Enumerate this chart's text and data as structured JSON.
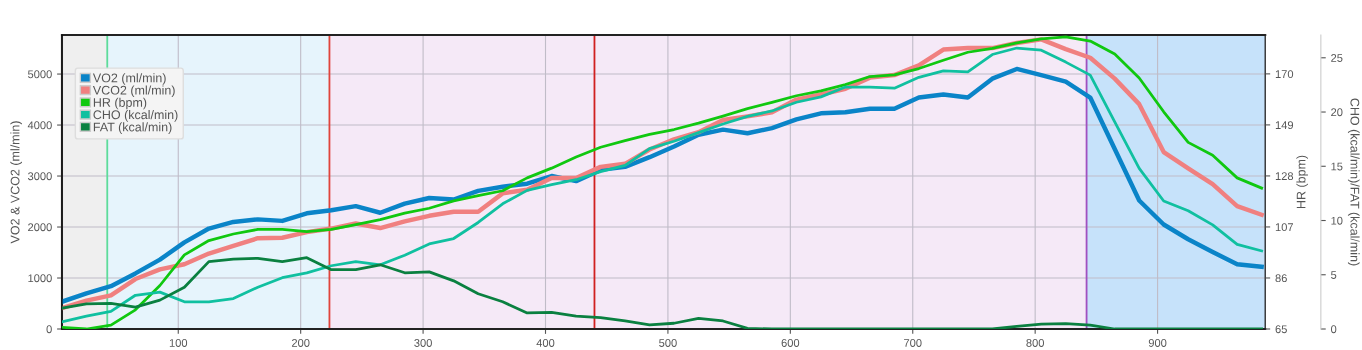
{
  "chart_data": {
    "type": "line",
    "ylabel": "VO2 & VCO2 (ml/min)",
    "y2label": "HR (bpm)",
    "y3label": "CHO (kcal/min)/FAT (kcal/min)",
    "x": [
      5,
      25,
      45,
      65,
      85,
      105,
      125,
      145,
      165,
      185,
      205,
      225,
      245,
      265,
      285,
      305,
      325,
      345,
      365,
      385,
      405,
      425,
      445,
      465,
      485,
      505,
      525,
      545,
      565,
      585,
      605,
      625,
      645,
      665,
      685,
      705,
      725,
      745,
      765,
      785,
      805,
      825,
      845,
      865,
      885,
      905,
      925,
      945,
      965,
      985
    ],
    "xlim": [
      5,
      988
    ],
    "xticks": [
      100,
      200,
      300,
      400,
      500,
      600,
      700,
      800,
      900
    ],
    "ylim": [
      0,
      5766
    ],
    "yticks": [
      0,
      1000,
      2000,
      3000,
      4000,
      5000
    ],
    "y2lim": [
      65,
      186
    ],
    "y2ticks": [
      65,
      86,
      107,
      128,
      149,
      170
    ],
    "y3lim": [
      0,
      27.1
    ],
    "y3ticks": [
      0,
      5,
      10,
      15,
      20,
      25
    ],
    "grid": true,
    "legend": "top left",
    "series": [
      {
        "name": "VO2 (ml/min)",
        "color": "#0a84c8",
        "axis": "y",
        "values": [
          535,
          700,
          840,
          1090,
          1360,
          1700,
          1970,
          2100,
          2150,
          2120,
          2270,
          2330,
          2410,
          2280,
          2460,
          2570,
          2540,
          2710,
          2790,
          2850,
          3000,
          2900,
          3120,
          3180,
          3370,
          3580,
          3810,
          3910,
          3840,
          3940,
          4110,
          4230,
          4250,
          4320,
          4320,
          4540,
          4600,
          4540,
          4910,
          5100,
          4980,
          4850,
          4540,
          3530,
          2520,
          2050,
          1760,
          1510,
          1270,
          1220
        ]
      },
      {
        "name": "VCO2 (ml/min)",
        "color": "#f08080",
        "axis": "y",
        "values": [
          410,
          555,
          660,
          980,
          1170,
          1270,
          1480,
          1630,
          1780,
          1790,
          1900,
          1970,
          2070,
          1980,
          2110,
          2220,
          2300,
          2300,
          2660,
          2730,
          2960,
          2960,
          3180,
          3240,
          3520,
          3720,
          3860,
          4100,
          4170,
          4250,
          4500,
          4600,
          4710,
          4930,
          4980,
          5170,
          5480,
          5510,
          5510,
          5610,
          5680,
          5490,
          5320,
          4910,
          4410,
          3470,
          3150,
          2840,
          2410,
          2240
        ]
      },
      {
        "name": "HR (bpm)",
        "color": "#10c810",
        "axis": "y2",
        "values": [
          65.7,
          65,
          66.6,
          72.9,
          82.9,
          95.5,
          101.4,
          104.1,
          106,
          106,
          105.1,
          106,
          108,
          110,
          112.7,
          114.7,
          117.7,
          119.9,
          121.9,
          127.2,
          131.2,
          135.8,
          139.8,
          142.5,
          145.1,
          147.1,
          149.7,
          152.6,
          155.7,
          158.3,
          161,
          163,
          165.6,
          168.9,
          169.6,
          172.2,
          175.6,
          178.9,
          180.5,
          182.8,
          184.4,
          185.2,
          183.5,
          178.2,
          168.3,
          154.4,
          141.8,
          136.5,
          127.2,
          123
        ]
      },
      {
        "name": "CHO (kcal/min)",
        "color": "#10c0a0",
        "axis": "y3",
        "values": [
          0.65,
          1.18,
          1.63,
          3.11,
          3.4,
          2.51,
          2.51,
          2.81,
          3.85,
          4.73,
          5.18,
          5.83,
          6.21,
          5.92,
          6.8,
          7.84,
          8.34,
          9.82,
          11.54,
          12.78,
          13.31,
          13.76,
          14.5,
          15.09,
          16.63,
          17.31,
          18.1,
          18.9,
          19.6,
          20.1,
          20.9,
          21.4,
          22.3,
          22.3,
          22.2,
          23.2,
          23.8,
          23.7,
          25.3,
          25.9,
          25.7,
          24.6,
          23.4,
          19.1,
          14.8,
          11.8,
          10.9,
          9.6,
          7.8,
          7.2
        ]
      },
      {
        "name": "FAT (kcal/min)",
        "color": "#0a8040",
        "axis": "y3",
        "values": [
          1.92,
          2.31,
          2.37,
          2.01,
          2.66,
          3.85,
          6.21,
          6.45,
          6.51,
          6.21,
          6.57,
          5.47,
          5.47,
          5.92,
          5.18,
          5.27,
          4.44,
          3.25,
          2.51,
          1.48,
          1.54,
          1.18,
          1.04,
          0.74,
          0.38,
          0.53,
          0.98,
          0.74,
          0.06,
          0,
          0,
          0,
          0,
          0,
          0,
          0,
          0,
          0,
          0,
          0.24,
          0.44,
          0.5,
          0.36,
          0,
          0,
          0,
          0,
          0,
          0,
          0
        ]
      }
    ],
    "bands": [
      {
        "axis": "x",
        "from": 5,
        "to": 42,
        "color": "#efefef"
      },
      {
        "axis": "x",
        "from": 42,
        "to": 223.5,
        "color": "#e6f4fc"
      },
      {
        "axis": "x",
        "from": 223.5,
        "to": 842,
        "color": "#f5e9f7"
      },
      {
        "axis": "x",
        "from": 842,
        "to": 988,
        "color": "#c6e2fa"
      }
    ],
    "ref_lines": [
      {
        "axis": "x",
        "value": 42,
        "color": "#5ddc9a"
      },
      {
        "axis": "x",
        "value": 223.5,
        "color": "#e0443c"
      },
      {
        "axis": "x",
        "value": 440,
        "color": "#d02020"
      },
      {
        "axis": "x",
        "value": 842,
        "color": "#a050c0"
      }
    ]
  }
}
